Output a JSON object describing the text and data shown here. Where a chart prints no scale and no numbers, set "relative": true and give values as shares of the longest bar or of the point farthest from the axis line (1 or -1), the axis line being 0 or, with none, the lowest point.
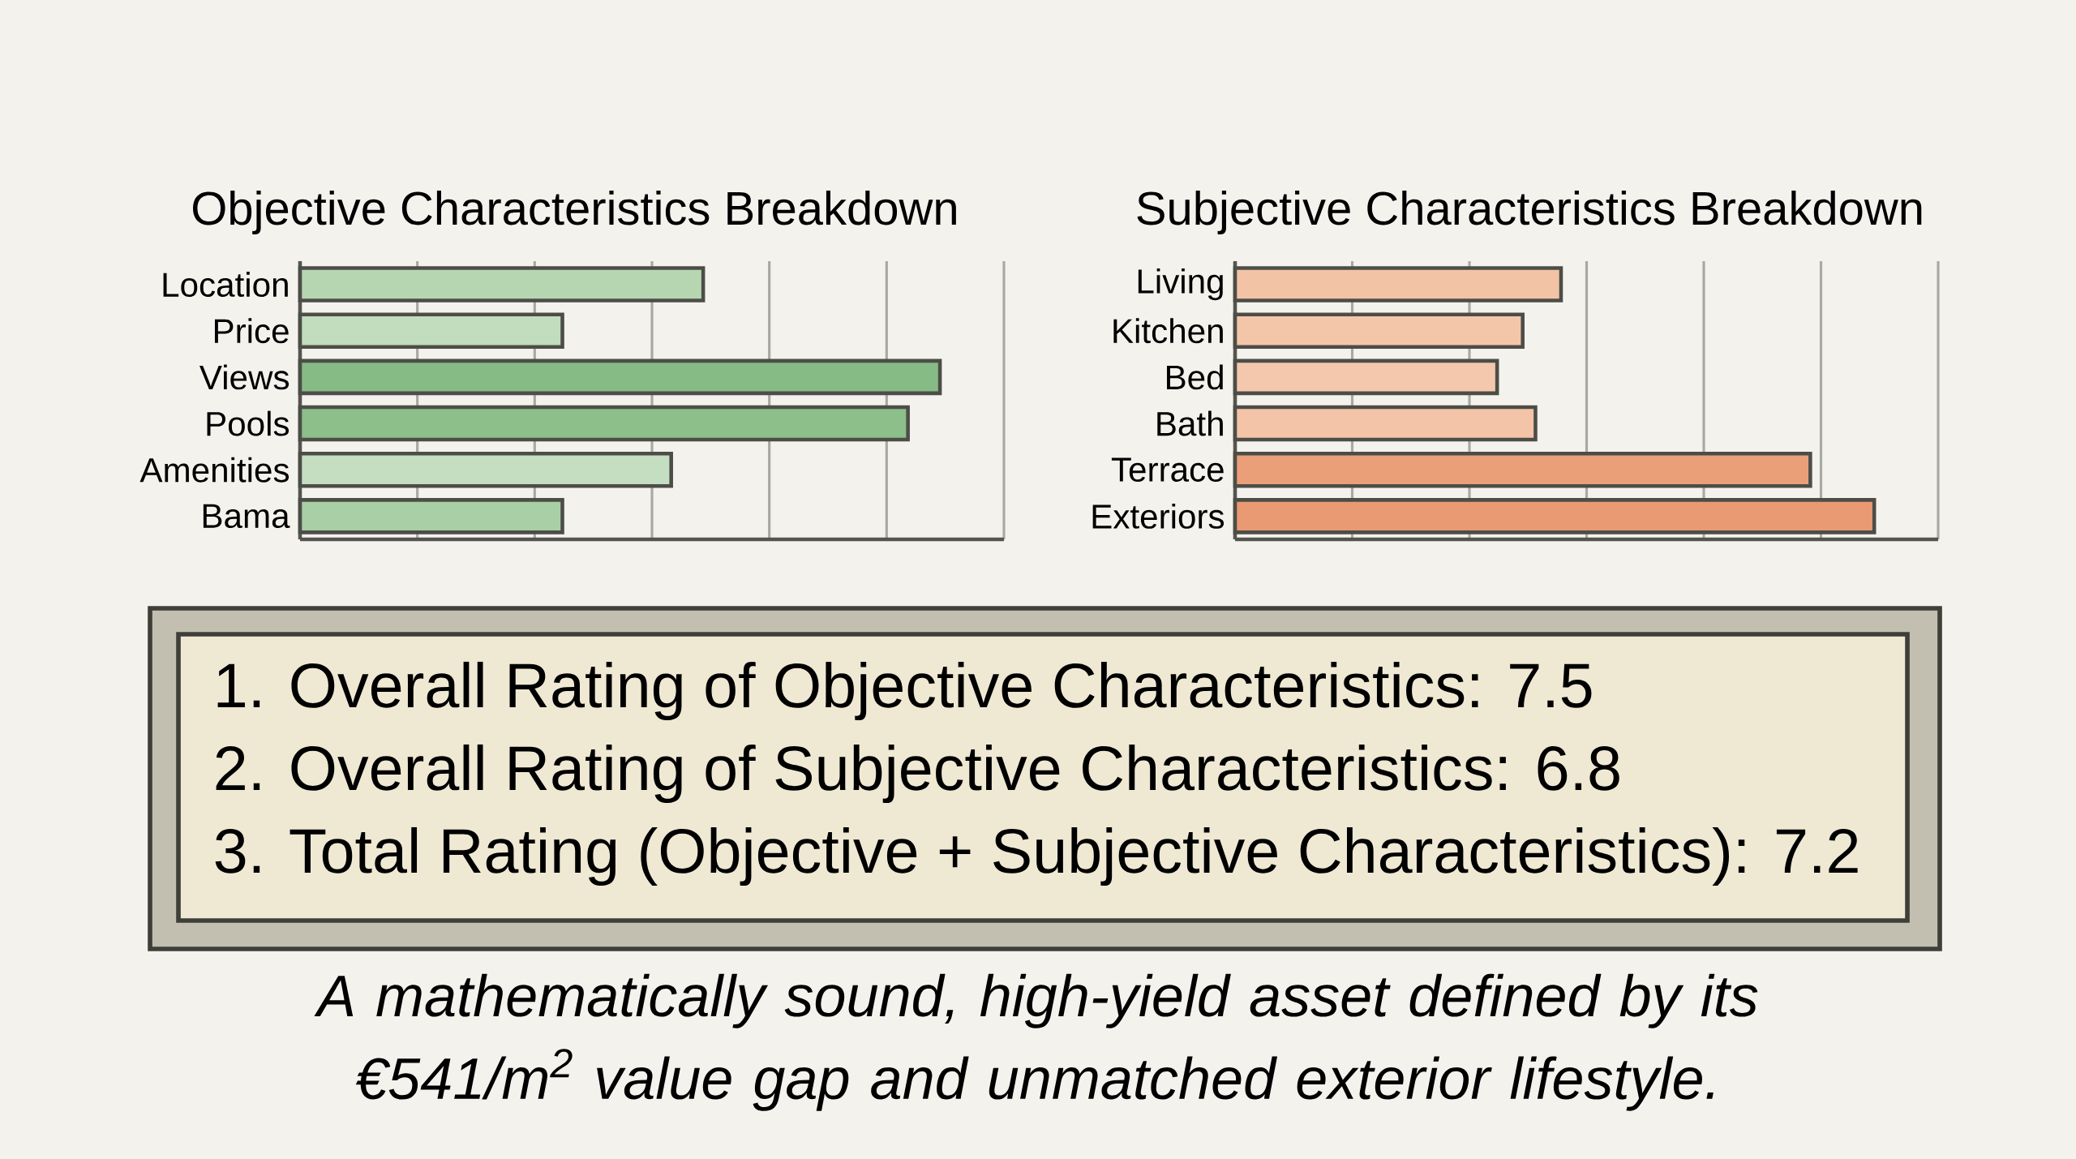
{
  "chart_data": [
    {
      "type": "bar",
      "orientation": "horizontal",
      "relative": true,
      "title": "Objective Characteristics Breakdown",
      "categories": [
        "Location",
        "Price",
        "Views",
        "Pools",
        "Amenities",
        "Bama"
      ],
      "values": [
        0.63,
        0.41,
        1,
        0.95,
        0.58,
        0.41
      ],
      "colors": [
        "#b5d6b1",
        "#c2dcbe",
        "#86bb86",
        "#8cbf8a",
        "#c5ddc1",
        "#a8cfa5"
      ],
      "grid": "x"
    },
    {
      "type": "bar",
      "orientation": "horizontal",
      "relative": true,
      "title": "Subjective Characteristics Breakdown",
      "categories": [
        "Living",
        "Kitchen",
        "Bed",
        "Bath",
        "Terrace",
        "Exteriors"
      ],
      "values": [
        0.51,
        0.45,
        0.41,
        0.47,
        0.9,
        1
      ],
      "colors": [
        "#f3c3a6",
        "#f3c6aa",
        "#f4c8ad",
        "#f3c4a7",
        "#ea9f78",
        "#e99a72"
      ],
      "grid": "x"
    },
    {
      "type": "other",
      "annotations": [
        "1. Overall Rating of Objective Characteristics: 7.5",
        "2. Overall Rating of Subjective Characteristics: 6.8",
        "3. Total Rating (Objective + Subjective Characteristics): 7.2",
        "A mathematically sound, high-yield asset defined by its €541/m$^{2}$ value gap and unmatched exterior lifestyle."
      ]
    }
  ]
}
